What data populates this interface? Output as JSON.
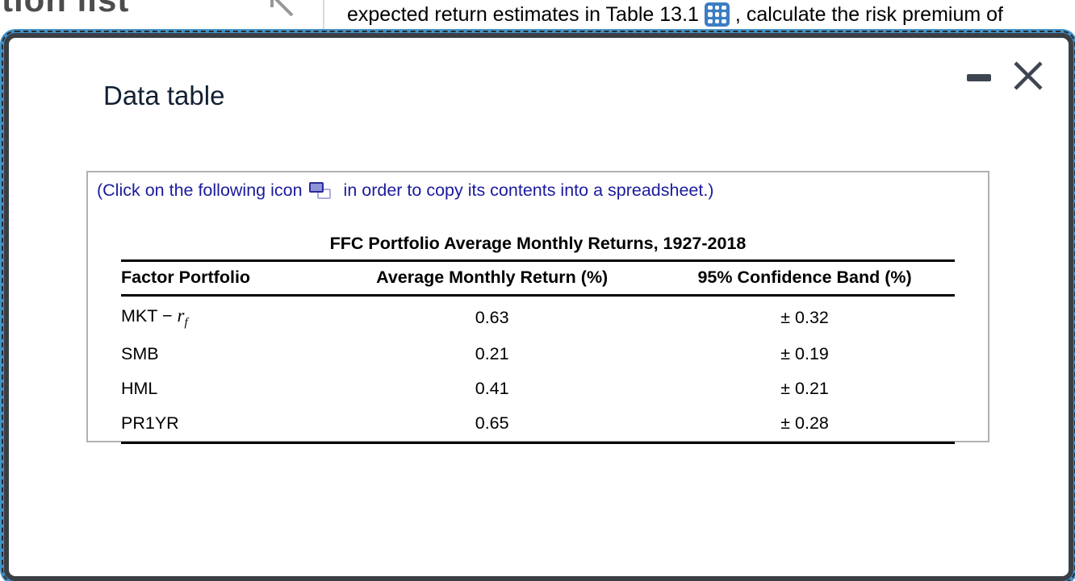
{
  "background": {
    "partial_heading": "tion list",
    "sentence_before_icon": "expected return estimates in Table 13.1",
    "sentence_after_icon": ", calculate the risk premium of",
    "table_icon_color": "#3c7ec2"
  },
  "modal": {
    "title": "Data table",
    "accent_border_color": "#4292ca",
    "window_controls": {
      "minimize": "minimize",
      "close": "close"
    },
    "instruction_before_icon": "(Click on the following icon",
    "instruction_after_icon": "in order to copy its contents into a spreadsheet.)",
    "instruction_color": "#1b1b9e",
    "table": {
      "title": "FFC Portfolio Average Monthly Returns, 1927-2018",
      "columns": [
        "Factor Portfolio",
        "Average Monthly Return (%)",
        "95% Confidence Band (%)"
      ],
      "rows": [
        {
          "factor_prefix": "MKT − ",
          "factor_var": "r",
          "factor_sub": "f",
          "avg": "0.63",
          "band": "± 0.32"
        },
        {
          "factor_prefix": "SMB",
          "factor_var": "",
          "factor_sub": "",
          "avg": "0.21",
          "band": "± 0.19"
        },
        {
          "factor_prefix": "HML",
          "factor_var": "",
          "factor_sub": "",
          "avg": "0.41",
          "band": "± 0.21"
        },
        {
          "factor_prefix": "PR1YR",
          "factor_var": "",
          "factor_sub": "",
          "avg": "0.65",
          "band": "± 0.28"
        }
      ]
    }
  }
}
